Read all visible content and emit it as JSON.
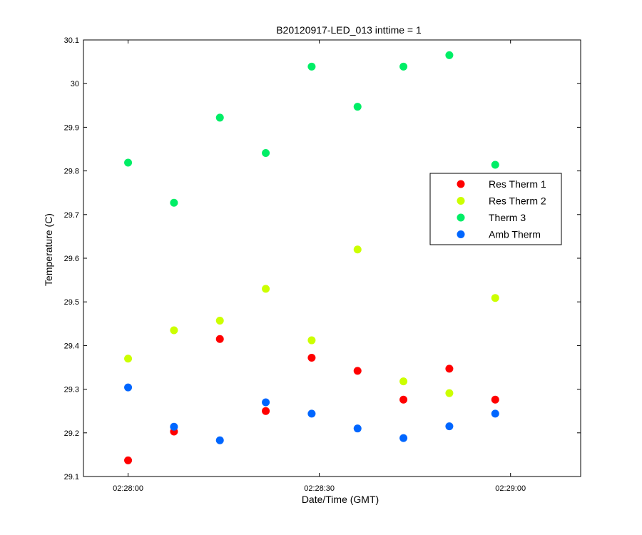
{
  "chart_data": {
    "type": "scatter",
    "title": "B20120917-LED_013 inttime = 1",
    "xlabel": "Date/Time (GMT)",
    "ylabel": "Temperature (C)",
    "x_unit": "seconds after 02:28:00 GMT",
    "xlim": [
      -7,
      71
    ],
    "ylim": [
      29.1,
      30.1
    ],
    "x_ticks": [
      {
        "value": 0,
        "label": "02:28:00"
      },
      {
        "value": 30,
        "label": "02:28:30"
      },
      {
        "value": 60,
        "label": "02:29:00"
      }
    ],
    "y_ticks": [
      {
        "value": 29.1,
        "label": "29.1"
      },
      {
        "value": 29.2,
        "label": "29.2"
      },
      {
        "value": 29.3,
        "label": "29.3"
      },
      {
        "value": 29.4,
        "label": "29.4"
      },
      {
        "value": 29.5,
        "label": "29.5"
      },
      {
        "value": 29.6,
        "label": "29.6"
      },
      {
        "value": 29.7,
        "label": "29.7"
      },
      {
        "value": 29.8,
        "label": "29.8"
      },
      {
        "value": 29.9,
        "label": "29.9"
      },
      {
        "value": 30.0,
        "label": "30"
      },
      {
        "value": 30.1,
        "label": "30.1"
      }
    ],
    "x": [
      0,
      7.2,
      14.4,
      21.6,
      28.8,
      36.0,
      43.2,
      50.4,
      57.6
    ],
    "series": [
      {
        "name": "Res Therm 1",
        "color": "#ff0000",
        "values": [
          29.137,
          29.203,
          29.415,
          29.25,
          29.372,
          29.342,
          29.276,
          29.347,
          29.276
        ]
      },
      {
        "name": "Res Therm 2",
        "color": "#ccff00",
        "values": [
          29.37,
          29.435,
          29.457,
          29.53,
          29.412,
          29.62,
          29.318,
          29.291,
          29.509
        ]
      },
      {
        "name": "Therm 3",
        "color": "#00ee66",
        "values": [
          29.819,
          29.727,
          29.922,
          29.841,
          30.039,
          29.947,
          30.039,
          30.065,
          29.814
        ]
      },
      {
        "name": "Amb Therm",
        "color": "#0066ff",
        "values": [
          29.304,
          29.214,
          29.183,
          29.27,
          29.244,
          29.21,
          29.188,
          29.215,
          29.244
        ]
      }
    ],
    "grid": false,
    "legend_position": "center-right"
  }
}
